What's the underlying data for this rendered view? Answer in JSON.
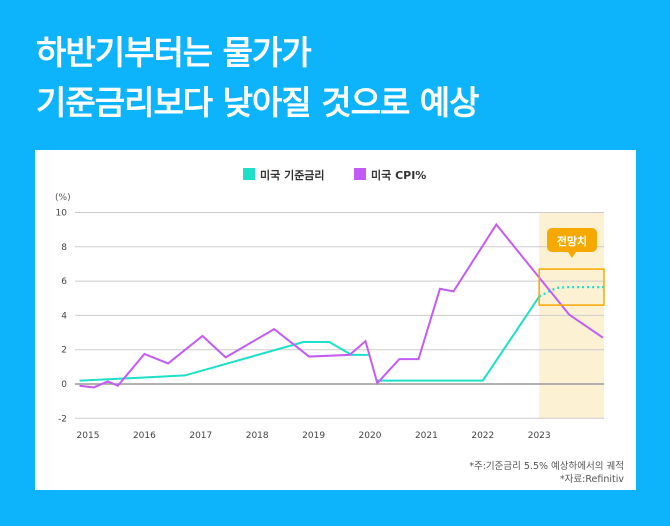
{
  "title_line1": "하반기부터는 물가가",
  "title_line2": "기준금리보다 낮아질 것으로 예상",
  "forecast_label": "전망치",
  "note1": "*주:기준금리 5.5% 예상하에서의 궤적",
  "note2": "*자료:Refinitiv",
  "colors": {
    "background": "#0db4fb",
    "fed_rate": "#1ee0c8",
    "cpi": "#c35cf5",
    "forecast_shade": "#fdf1d4",
    "forecast_box": "#f5a800"
  },
  "chart_data": {
    "type": "line",
    "ylabel": "(%)",
    "ylim": [
      -2,
      10
    ],
    "yticks": [
      10,
      8,
      6,
      4,
      2,
      0,
      -2
    ],
    "xticks": [
      "2015",
      "2016",
      "2017",
      "2018",
      "2019",
      "2020",
      "2021",
      "2022",
      "2023"
    ],
    "xlim": [
      2014.8,
      2024.15
    ],
    "grid": true,
    "legend_placement": "top",
    "forecast_region": [
      2023.0,
      2024.15
    ],
    "series": [
      {
        "name": "미국 기준금리",
        "segments": [
          [
            [
              2014.85,
              0.2
            ],
            [
              2015.5,
              0.3
            ],
            [
              2016.72,
              0.5
            ],
            [
              2018.82,
              2.45
            ],
            [
              2019.28,
              2.45
            ],
            [
              2019.67,
              1.7
            ],
            [
              2020.0,
              1.7
            ]
          ],
          [
            [
              2020.1,
              0.2
            ],
            [
              2022.0,
              0.2
            ],
            [
              2023.0,
              5.1
            ]
          ]
        ],
        "forecast": [
          [
            2023.0,
            5.1
          ],
          [
            2023.3,
            5.6
          ],
          [
            2023.5,
            5.65
          ],
          [
            2024.15,
            5.65
          ]
        ]
      },
      {
        "name": "미국 CPI%",
        "segments": [
          [
            [
              2014.85,
              -0.1
            ],
            [
              2015.1,
              -0.2
            ],
            [
              2015.35,
              0.15
            ],
            [
              2015.53,
              -0.1
            ],
            [
              2016.0,
              1.75
            ],
            [
              2016.42,
              1.2
            ],
            [
              2017.03,
              2.8
            ],
            [
              2017.44,
              1.55
            ],
            [
              2018.3,
              3.2
            ],
            [
              2018.92,
              1.6
            ],
            [
              2019.64,
              1.7
            ],
            [
              2019.92,
              2.5
            ],
            [
              2020.13,
              0.05
            ],
            [
              2020.52,
              1.45
            ],
            [
              2020.86,
              1.45
            ],
            [
              2021.24,
              5.55
            ],
            [
              2021.48,
              5.4
            ],
            [
              2022.24,
              9.3
            ],
            [
              2023.53,
              4.05
            ],
            [
              2024.13,
              2.7
            ]
          ]
        ]
      }
    ]
  }
}
